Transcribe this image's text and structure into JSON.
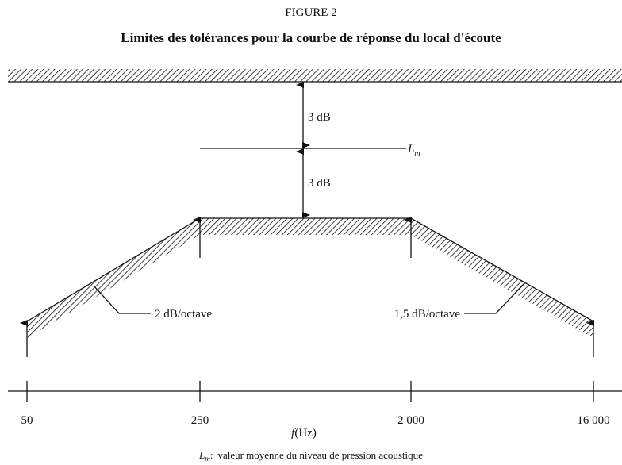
{
  "figure_label": "FIGURE 2",
  "title": "Limites des tolérances pour la courbe de réponse du local d'écoute",
  "upper_gap": "3 dB",
  "lower_gap": "3 dB",
  "mean_level": {
    "base": "L",
    "sub": "m"
  },
  "left_slope_label": "2 dB/octave",
  "right_slope_label": "1,5 dB/octave",
  "axis": {
    "ticks": [
      "50",
      "250",
      "2 000",
      "16 000"
    ],
    "label_var": "f",
    "label_unit": "(Hz)"
  },
  "footnote": {
    "base": "L",
    "sub": "m",
    "separator": ":",
    "text": "valeur moyenne du niveau de pression acoustique"
  }
}
